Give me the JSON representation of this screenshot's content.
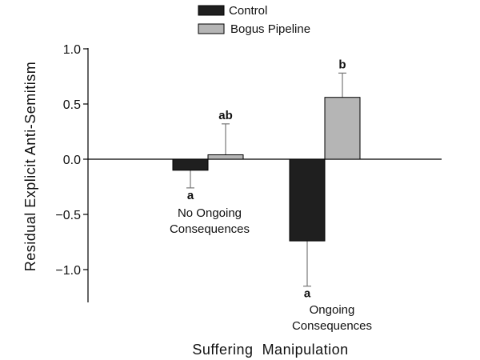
{
  "chart_data": {
    "type": "bar",
    "title": "",
    "xlabel": "Suffering  Manipulation",
    "ylabel": "Residual  Explicit  Anti-Semitism",
    "ylim": [
      -1.3,
      1.0
    ],
    "yticks": [
      1.0,
      0.5,
      0.0,
      -0.5,
      -1.0
    ],
    "ytick_labels": [
      "1.0",
      "0.5",
      "0.0",
      "−0.5",
      "−1.0"
    ],
    "grid": false,
    "legend_position": "top-center",
    "categories": [
      {
        "lines": [
          "No Ongoing",
          "Consequences"
        ]
      },
      {
        "lines": [
          "Ongoing",
          "Consequences"
        ]
      }
    ],
    "series": [
      {
        "name": "Control",
        "color": "#1f1f1f",
        "values": [
          -0.1,
          -0.74
        ],
        "errors": [
          0.16,
          0.41
        ],
        "sig_labels": [
          "a",
          "a"
        ]
      },
      {
        "name": "Bogus Pipeline",
        "color": "#b5b5b5",
        "values": [
          0.04,
          0.56
        ],
        "errors": [
          0.28,
          0.22
        ],
        "sig_labels": [
          "ab",
          "b"
        ]
      }
    ]
  }
}
